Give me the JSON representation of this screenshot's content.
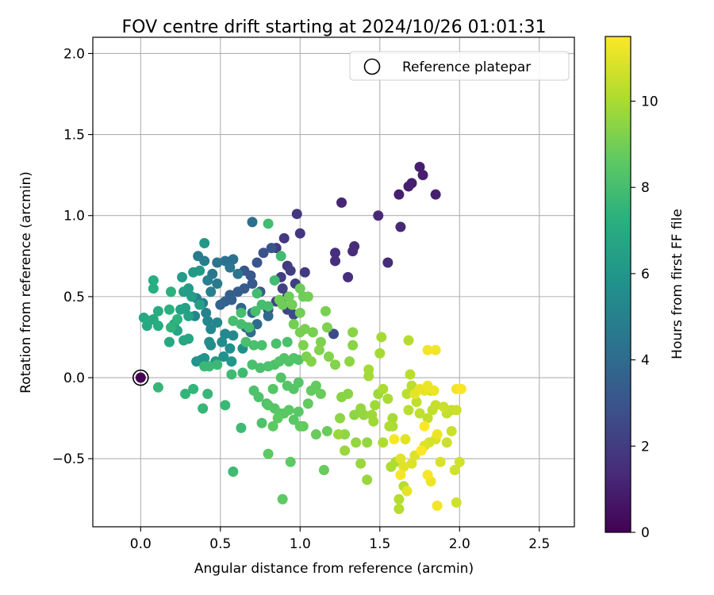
{
  "chart_data": {
    "type": "scatter",
    "title": "FOV centre drift starting at 2024/10/26 01:01:31",
    "xlabel": "Angular distance from reference (arcmin)",
    "ylabel": "Rotation from reference (arcmin)",
    "xlim": [
      -0.3,
      2.72
    ],
    "ylim": [
      -0.92,
      2.1
    ],
    "xticks": [
      0.0,
      0.5,
      1.0,
      1.5,
      2.0,
      2.5
    ],
    "xtick_labels": [
      "0.0",
      "0.5",
      "1.0",
      "1.5",
      "2.0",
      "2.5"
    ],
    "yticks": [
      -0.5,
      0.0,
      0.5,
      1.0,
      1.5,
      2.0
    ],
    "ytick_labels": [
      "−0.5",
      "0.0",
      "0.5",
      "1.0",
      "1.5",
      "2.0"
    ],
    "grid": true,
    "legend": {
      "position": "top-right",
      "entries": [
        "Reference platepar"
      ]
    },
    "colorbar": {
      "label": "Hours from first FF file",
      "colormap": "viridis",
      "range": [
        0,
        11.5
      ],
      "ticks": [
        0,
        2,
        4,
        6,
        8,
        10
      ],
      "tick_labels": [
        "0",
        "2",
        "4",
        "6",
        "8",
        "10"
      ]
    },
    "reference_point": {
      "x": 0.0,
      "y": 0.0,
      "label": "Reference platepar"
    },
    "points": [
      [
        0.0,
        0.0,
        0.0
      ],
      [
        1.75,
        1.3,
        1.0
      ],
      [
        1.77,
        1.25,
        1.0
      ],
      [
        1.7,
        1.2,
        1.0
      ],
      [
        1.68,
        1.18,
        1.0
      ],
      [
        1.85,
        1.13,
        1.0
      ],
      [
        1.62,
        1.13,
        1.0
      ],
      [
        1.26,
        1.08,
        1.2
      ],
      [
        1.49,
        1.0,
        1.3
      ],
      [
        1.63,
        0.93,
        1.3
      ],
      [
        1.55,
        0.71,
        1.4
      ],
      [
        1.34,
        0.81,
        1.4
      ],
      [
        1.33,
        0.78,
        1.4
      ],
      [
        1.22,
        0.77,
        1.5
      ],
      [
        1.22,
        0.72,
        1.5
      ],
      [
        1.3,
        0.62,
        1.5
      ],
      [
        0.98,
        1.01,
        1.8
      ],
      [
        1.0,
        0.89,
        1.8
      ],
      [
        0.9,
        0.86,
        1.9
      ],
      [
        0.85,
        0.8,
        2.0
      ],
      [
        0.92,
        0.69,
        2.0
      ],
      [
        1.03,
        0.65,
        2.0
      ],
      [
        0.94,
        0.66,
        2.1
      ],
      [
        0.88,
        0.62,
        2.1
      ],
      [
        0.97,
        0.58,
        2.1
      ],
      [
        0.89,
        0.55,
        2.2
      ],
      [
        0.92,
        0.5,
        2.2
      ],
      [
        0.85,
        0.47,
        2.3
      ],
      [
        0.8,
        0.42,
        2.4
      ],
      [
        0.92,
        0.42,
        2.4
      ],
      [
        1.21,
        0.27,
        2.6
      ],
      [
        0.96,
        0.39,
        2.6
      ],
      [
        0.77,
        0.77,
        2.9
      ],
      [
        0.82,
        0.8,
        3.0
      ],
      [
        0.73,
        0.71,
        3.0
      ],
      [
        0.65,
        0.66,
        3.1
      ],
      [
        0.69,
        0.63,
        3.1
      ],
      [
        0.7,
        0.58,
        3.2
      ],
      [
        0.65,
        0.55,
        3.3
      ],
      [
        0.75,
        0.53,
        3.3
      ],
      [
        0.61,
        0.53,
        3.4
      ],
      [
        0.56,
        0.51,
        3.5
      ],
      [
        0.57,
        0.48,
        3.5
      ],
      [
        0.53,
        0.47,
        3.6
      ],
      [
        0.5,
        0.45,
        3.7
      ],
      [
        0.63,
        0.43,
        3.7
      ],
      [
        0.7,
        0.4,
        3.8
      ],
      [
        0.8,
        0.38,
        3.9
      ],
      [
        0.73,
        0.33,
        4.0
      ],
      [
        0.66,
        0.31,
        4.0
      ],
      [
        0.69,
        0.28,
        4.1
      ],
      [
        0.7,
        0.96,
        4.2
      ],
      [
        0.53,
        0.72,
        4.3
      ],
      [
        0.58,
        0.73,
        4.3
      ],
      [
        0.48,
        0.71,
        4.4
      ],
      [
        0.56,
        0.68,
        4.5
      ],
      [
        0.61,
        0.64,
        4.5
      ],
      [
        0.45,
        0.64,
        4.6
      ],
      [
        0.48,
        0.58,
        4.7
      ],
      [
        0.36,
        0.75,
        4.7
      ],
      [
        0.4,
        0.72,
        4.8
      ],
      [
        0.42,
        0.6,
        4.9
      ],
      [
        0.44,
        0.53,
        4.9
      ],
      [
        0.35,
        0.49,
        5.0
      ],
      [
        0.39,
        0.46,
        5.0
      ],
      [
        0.41,
        0.4,
        5.1
      ],
      [
        0.34,
        0.38,
        5.2
      ],
      [
        0.42,
        0.35,
        5.2
      ],
      [
        0.48,
        0.34,
        5.3
      ],
      [
        0.44,
        0.3,
        5.3
      ],
      [
        0.53,
        0.27,
        5.4
      ],
      [
        0.58,
        0.26,
        5.4
      ],
      [
        0.43,
        0.22,
        5.5
      ],
      [
        0.51,
        0.22,
        5.5
      ],
      [
        0.44,
        0.2,
        5.6
      ],
      [
        0.56,
        0.18,
        5.7
      ],
      [
        0.64,
        0.18,
        5.7
      ],
      [
        0.52,
        0.13,
        5.8
      ],
      [
        0.38,
        0.11,
        5.8
      ],
      [
        0.35,
        0.1,
        5.9
      ],
      [
        0.4,
        0.12,
        5.9
      ],
      [
        0.57,
        0.1,
        6.0
      ],
      [
        0.47,
        0.1,
        6.0
      ],
      [
        0.4,
        0.83,
        6.1
      ],
      [
        0.37,
        0.66,
        6.2
      ],
      [
        0.33,
        0.65,
        6.2
      ],
      [
        0.26,
        0.62,
        6.3
      ],
      [
        0.3,
        0.55,
        6.3
      ],
      [
        0.27,
        0.53,
        6.4
      ],
      [
        0.32,
        0.5,
        6.4
      ],
      [
        0.28,
        0.43,
        6.5
      ],
      [
        0.37,
        0.45,
        6.5
      ],
      [
        0.3,
        0.38,
        6.6
      ],
      [
        0.25,
        0.42,
        6.6
      ],
      [
        0.21,
        0.33,
        6.7
      ],
      [
        0.23,
        0.29,
        6.7
      ],
      [
        0.3,
        0.24,
        6.8
      ],
      [
        0.27,
        0.23,
        6.8
      ],
      [
        0.18,
        0.22,
        6.9
      ],
      [
        0.02,
        0.37,
        6.9
      ],
      [
        0.05,
        0.35,
        7.0
      ],
      [
        0.04,
        0.32,
        7.0
      ],
      [
        0.08,
        0.36,
        7.0
      ],
      [
        0.11,
        0.41,
        7.1
      ],
      [
        0.11,
        0.32,
        7.1
      ],
      [
        0.08,
        0.55,
        7.2
      ],
      [
        0.08,
        0.6,
        7.2
      ],
      [
        0.19,
        0.53,
        7.3
      ],
      [
        0.18,
        0.42,
        7.3
      ],
      [
        0.19,
        0.31,
        7.4
      ],
      [
        0.23,
        0.36,
        7.4
      ],
      [
        0.28,
        -0.1,
        7.5
      ],
      [
        0.33,
        -0.07,
        7.5
      ],
      [
        0.39,
        -0.19,
        7.6
      ],
      [
        0.42,
        -0.1,
        7.6
      ],
      [
        0.11,
        -0.06,
        7.6
      ],
      [
        0.53,
        -0.17,
        7.7
      ],
      [
        0.4,
        0.07,
        7.7
      ],
      [
        0.43,
        0.07,
        7.7
      ],
      [
        0.48,
        0.08,
        7.7
      ],
      [
        0.63,
        -0.31,
        7.8
      ],
      [
        0.58,
        -0.58,
        7.8
      ],
      [
        0.57,
        0.02,
        7.8
      ],
      [
        0.64,
        0.03,
        7.8
      ],
      [
        0.8,
        0.95,
        7.9
      ],
      [
        0.88,
        0.75,
        7.9
      ],
      [
        0.84,
        0.6,
        7.9
      ],
      [
        0.73,
        0.52,
        7.9
      ],
      [
        0.76,
        0.45,
        8.0
      ],
      [
        0.8,
        0.44,
        8.0
      ],
      [
        0.72,
        0.41,
        8.0
      ],
      [
        0.63,
        0.4,
        8.0
      ],
      [
        0.58,
        0.35,
        8.0
      ],
      [
        0.63,
        0.33,
        8.0
      ],
      [
        0.68,
        0.31,
        8.0
      ],
      [
        0.66,
        0.22,
        8.1
      ],
      [
        0.71,
        0.2,
        8.1
      ],
      [
        0.76,
        0.2,
        8.1
      ],
      [
        0.85,
        0.21,
        8.1
      ],
      [
        0.92,
        0.22,
        8.1
      ],
      [
        0.7,
        0.08,
        8.1
      ],
      [
        0.75,
        0.06,
        8.1
      ],
      [
        0.71,
        -0.08,
        8.2
      ],
      [
        0.74,
        -0.12,
        8.2
      ],
      [
        0.76,
        -0.28,
        8.2
      ],
      [
        0.79,
        -0.16,
        8.2
      ],
      [
        0.8,
        0.07,
        8.2
      ],
      [
        0.84,
        0.08,
        8.2
      ],
      [
        0.87,
        0.1,
        8.3
      ],
      [
        0.9,
        0.12,
        8.3
      ],
      [
        0.93,
        0.1,
        8.3
      ],
      [
        0.96,
        0.12,
        8.3
      ],
      [
        0.99,
        0.11,
        8.3
      ],
      [
        0.88,
        0.0,
        8.3
      ],
      [
        0.92,
        -0.05,
        8.4
      ],
      [
        0.96,
        -0.07,
        8.4
      ],
      [
        0.99,
        -0.03,
        8.4
      ],
      [
        0.83,
        -0.07,
        8.4
      ],
      [
        0.8,
        -0.17,
        8.4
      ],
      [
        0.84,
        -0.19,
        8.4
      ],
      [
        0.87,
        -0.22,
        8.5
      ],
      [
        0.9,
        -0.22,
        8.5
      ],
      [
        0.93,
        -0.2,
        8.5
      ],
      [
        0.96,
        -0.26,
        8.5
      ],
      [
        0.99,
        -0.21,
        8.5
      ],
      [
        0.83,
        -0.3,
        8.6
      ],
      [
        0.86,
        -0.25,
        8.6
      ],
      [
        0.8,
        -0.47,
        8.6
      ],
      [
        0.94,
        -0.52,
        8.6
      ],
      [
        0.89,
        -0.75,
        8.6
      ],
      [
        1.0,
        -0.3,
        8.7
      ],
      [
        1.02,
        -0.3,
        8.7
      ],
      [
        1.05,
        -0.16,
        8.7
      ],
      [
        1.07,
        -0.08,
        8.7
      ],
      [
        1.1,
        -0.05,
        8.7
      ],
      [
        1.13,
        -0.1,
        8.8
      ],
      [
        1.1,
        -0.35,
        8.8
      ],
      [
        1.17,
        -0.33,
        8.8
      ],
      [
        1.15,
        -0.57,
        8.8
      ],
      [
        0.87,
        0.48,
        8.9
      ],
      [
        0.89,
        0.45,
        8.9
      ],
      [
        0.93,
        0.5,
        8.9
      ],
      [
        1.0,
        0.55,
        8.9
      ],
      [
        1.02,
        0.5,
        8.9
      ],
      [
        1.05,
        0.5,
        9.0
      ],
      [
        0.95,
        0.45,
        9.0
      ],
      [
        1.0,
        0.4,
        9.0
      ],
      [
        0.96,
        0.33,
        9.0
      ],
      [
        1.0,
        0.28,
        9.1
      ],
      [
        1.03,
        0.3,
        9.1
      ],
      [
        1.08,
        0.28,
        9.1
      ],
      [
        1.16,
        0.41,
        9.1
      ],
      [
        1.17,
        0.31,
        9.2
      ],
      [
        1.13,
        0.22,
        9.2
      ],
      [
        1.02,
        0.2,
        9.2
      ],
      [
        1.04,
        0.13,
        9.2
      ],
      [
        1.07,
        0.1,
        9.3
      ],
      [
        1.12,
        0.17,
        9.3
      ],
      [
        1.18,
        0.13,
        9.3
      ],
      [
        1.22,
        0.08,
        9.3
      ],
      [
        1.26,
        -0.12,
        9.4
      ],
      [
        1.3,
        -0.1,
        9.4
      ],
      [
        1.33,
        0.28,
        9.4
      ],
      [
        1.33,
        0.2,
        9.4
      ],
      [
        1.31,
        0.1,
        9.5
      ],
      [
        1.25,
        -0.25,
        9.5
      ],
      [
        1.28,
        -0.35,
        9.5
      ],
      [
        1.34,
        -0.23,
        9.5
      ],
      [
        1.38,
        -0.19,
        9.6
      ],
      [
        1.4,
        -0.23,
        9.6
      ],
      [
        1.35,
        -0.4,
        9.6
      ],
      [
        1.42,
        -0.4,
        9.6
      ],
      [
        1.38,
        -0.53,
        9.7
      ],
      [
        1.28,
        -0.45,
        9.7
      ],
      [
        1.24,
        -0.35,
        9.7
      ],
      [
        1.42,
        -0.63,
        9.7
      ],
      [
        1.45,
        -0.23,
        9.8
      ],
      [
        1.46,
        -0.27,
        9.8
      ],
      [
        1.47,
        -0.17,
        9.8
      ],
      [
        1.49,
        -0.1,
        9.8
      ],
      [
        1.43,
        0.05,
        9.9
      ],
      [
        1.43,
        0.01,
        9.9
      ],
      [
        1.5,
        0.15,
        9.9
      ],
      [
        1.51,
        0.25,
        9.9
      ],
      [
        1.52,
        -0.07,
        10.0
      ],
      [
        1.55,
        -0.13,
        10.0
      ],
      [
        1.58,
        -0.25,
        10.0
      ],
      [
        1.58,
        -0.3,
        10.0
      ],
      [
        1.56,
        -0.3,
        10.1
      ],
      [
        1.52,
        -0.4,
        10.1
      ],
      [
        1.57,
        -0.55,
        10.1
      ],
      [
        1.6,
        -0.52,
        10.1
      ],
      [
        1.62,
        -0.75,
        10.2
      ],
      [
        1.62,
        -0.81,
        10.2
      ],
      [
        1.65,
        -0.67,
        10.2
      ],
      [
        1.68,
        0.23,
        10.2
      ],
      [
        1.69,
        0.02,
        10.3
      ],
      [
        1.7,
        -0.05,
        10.3
      ],
      [
        1.67,
        -0.1,
        10.3
      ],
      [
        1.68,
        -0.2,
        10.3
      ],
      [
        1.73,
        -0.15,
        10.4
      ],
      [
        1.75,
        -0.22,
        10.4
      ],
      [
        1.8,
        -0.25,
        10.4
      ],
      [
        1.83,
        -0.2,
        10.4
      ],
      [
        1.85,
        -0.17,
        10.5
      ],
      [
        1.82,
        -0.08,
        10.5
      ],
      [
        1.92,
        -0.22,
        10.5
      ],
      [
        1.95,
        -0.2,
        10.5
      ],
      [
        1.9,
        -0.18,
        10.6
      ],
      [
        1.98,
        -0.2,
        10.6
      ],
      [
        1.92,
        -0.4,
        10.6
      ],
      [
        1.95,
        -0.33,
        10.6
      ],
      [
        1.97,
        -0.57,
        10.7
      ],
      [
        2.0,
        -0.52,
        10.7
      ],
      [
        1.98,
        -0.77,
        10.7
      ],
      [
        1.88,
        -0.52,
        10.8
      ],
      [
        1.85,
        -0.38,
        10.8
      ],
      [
        1.81,
        -0.4,
        10.8
      ],
      [
        1.78,
        -0.42,
        10.9
      ],
      [
        1.72,
        -0.48,
        10.9
      ],
      [
        1.7,
        -0.53,
        10.9
      ],
      [
        1.66,
        -0.38,
        11.0
      ],
      [
        1.63,
        -0.5,
        11.0
      ],
      [
        1.65,
        -0.55,
        11.0
      ],
      [
        1.67,
        -0.7,
        11.1
      ],
      [
        1.72,
        -0.1,
        11.1
      ],
      [
        1.75,
        -0.07,
        11.1
      ],
      [
        1.78,
        -0.08,
        11.1
      ],
      [
        1.8,
        -0.05,
        11.2
      ],
      [
        1.84,
        -0.08,
        11.2
      ],
      [
        1.86,
        -0.35,
        11.2
      ],
      [
        1.82,
        -0.64,
        11.2
      ],
      [
        1.86,
        -0.79,
        11.3
      ],
      [
        1.8,
        0.17,
        11.3
      ],
      [
        1.85,
        0.17,
        11.3
      ],
      [
        1.98,
        -0.07,
        11.3
      ],
      [
        2.01,
        -0.07,
        11.4
      ],
      [
        1.59,
        -0.38,
        11.4
      ],
      [
        1.63,
        -0.6,
        11.4
      ],
      [
        1.8,
        -0.6,
        11.4
      ],
      [
        1.76,
        -0.45,
        11.5
      ],
      [
        1.78,
        -0.3,
        11.5
      ]
    ]
  }
}
